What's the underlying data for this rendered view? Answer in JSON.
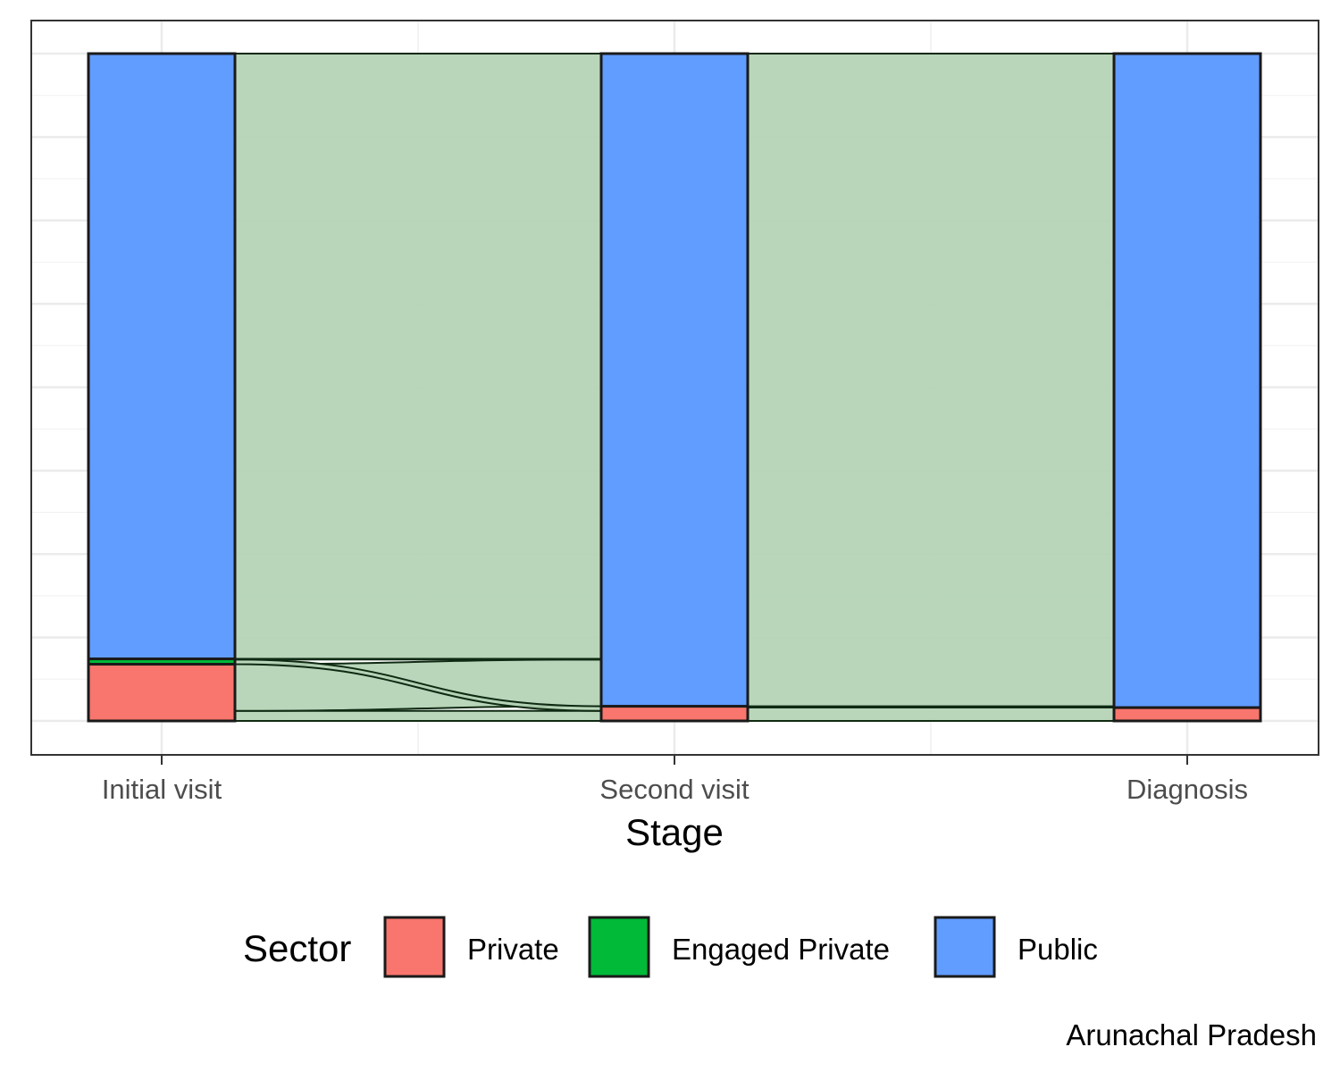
{
  "chart_data": {
    "type": "alluvial",
    "xlabel": "Stage",
    "caption": "Arunachal Pradesh",
    "categories": [
      "Initial visit",
      "Second visit",
      "Diagnosis"
    ],
    "legend": {
      "title": "Sector",
      "position": "bottom",
      "entries": [
        {
          "name": "Private",
          "color": "#F8766D"
        },
        {
          "name": "Engaged Private",
          "color": "#00BA38"
        },
        {
          "name": "Public",
          "color": "#619CFF"
        }
      ]
    },
    "stages": [
      {
        "name": "Initial visit",
        "strata": [
          {
            "sector": "Private",
            "value": 0.085
          },
          {
            "sector": "Engaged Private",
            "value": 0.008
          },
          {
            "sector": "Public",
            "value": 0.907
          }
        ]
      },
      {
        "name": "Second visit",
        "strata": [
          {
            "sector": "Private",
            "value": 0.022
          },
          {
            "sector": "Public",
            "value": 0.978
          }
        ]
      },
      {
        "name": "Diagnosis",
        "strata": [
          {
            "sector": "Private",
            "value": 0.02
          },
          {
            "sector": "Public",
            "value": 0.98
          }
        ]
      }
    ],
    "flows": [
      {
        "from_stage": 0,
        "to_stage": 1,
        "from": "Private",
        "to": "Private",
        "value": 0.015
      },
      {
        "from_stage": 0,
        "to_stage": 1,
        "from": "Private",
        "to": "Public",
        "value": 0.07
      },
      {
        "from_stage": 0,
        "to_stage": 1,
        "from": "Engaged Private",
        "to": "Private",
        "value": 0.007
      },
      {
        "from_stage": 0,
        "to_stage": 1,
        "from": "Engaged Private",
        "to": "Public",
        "value": 0.001
      },
      {
        "from_stage": 0,
        "to_stage": 1,
        "from": "Public",
        "to": "Public",
        "value": 0.907
      },
      {
        "from_stage": 1,
        "to_stage": 2,
        "from": "Private",
        "to": "Private",
        "value": 0.02
      },
      {
        "from_stage": 1,
        "to_stage": 2,
        "from": "Private",
        "to": "Public",
        "value": 0.002
      },
      {
        "from_stage": 1,
        "to_stage": 2,
        "from": "Public",
        "to": "Public",
        "value": 0.978
      }
    ],
    "flow_color": "#b3d3b5",
    "grid": true,
    "ylim": [
      -0.05,
      1.05
    ]
  }
}
